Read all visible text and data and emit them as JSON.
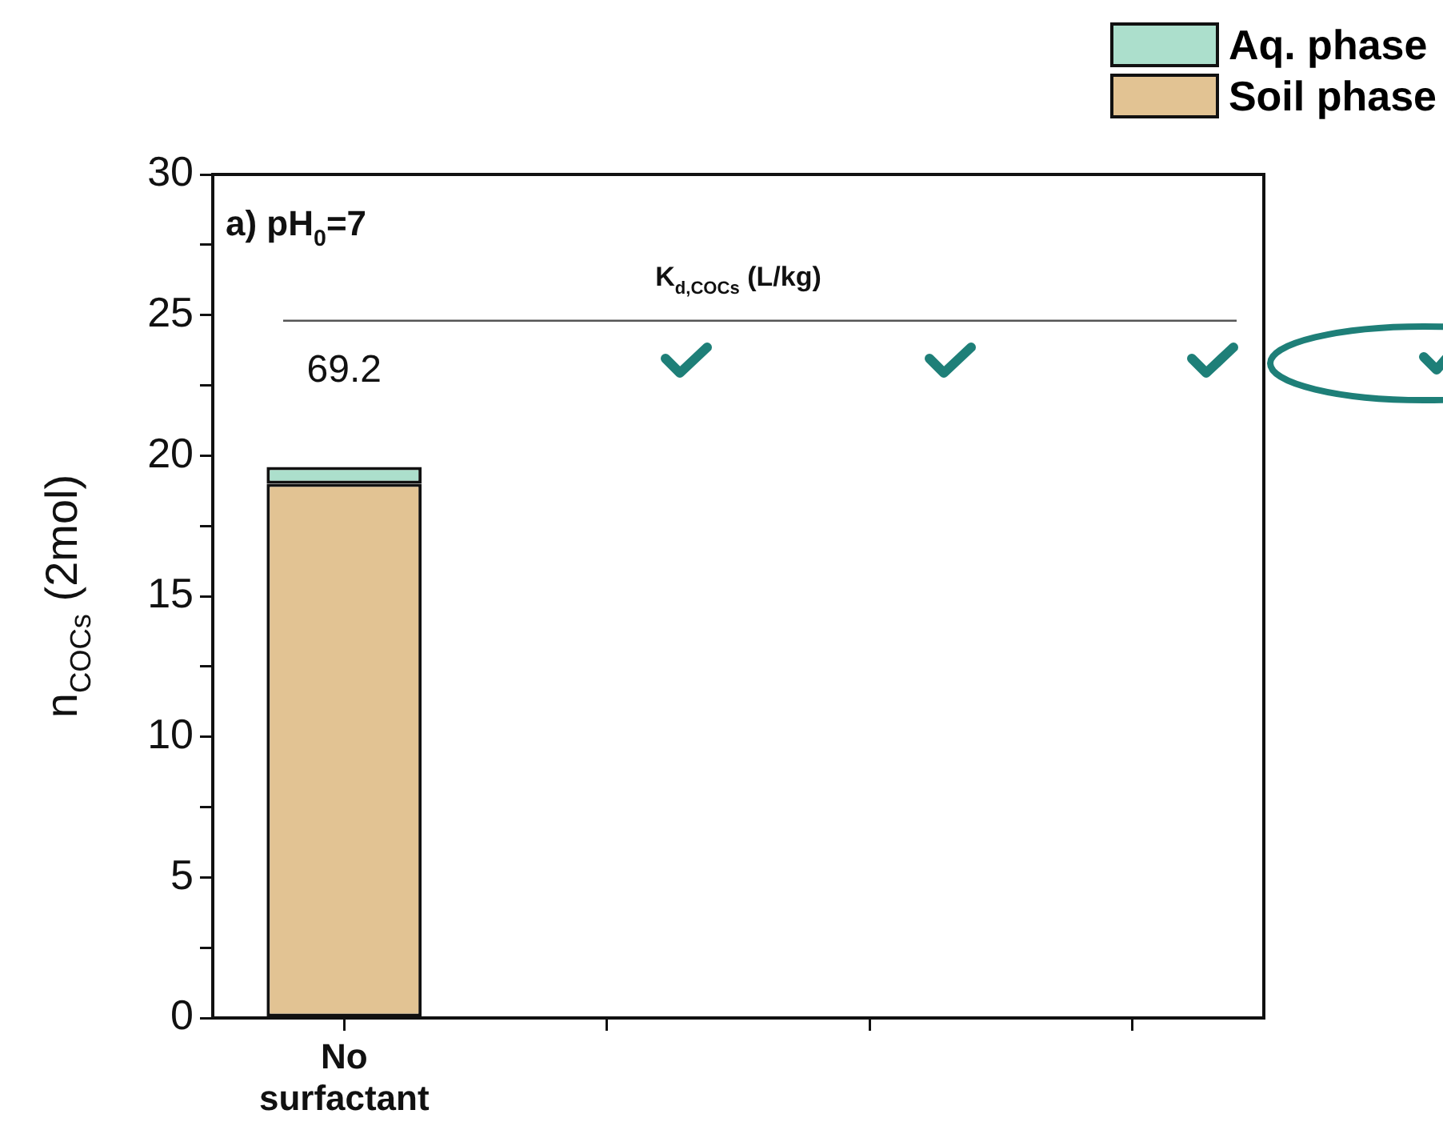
{
  "chart_data": {
    "type": "bar",
    "stacked": true,
    "categories": [
      "No surfactant",
      null,
      null,
      null
    ],
    "series": [
      {
        "name": "Soil phase",
        "color": "#e2c393",
        "values": [
          19.0,
          null,
          null,
          null
        ]
      },
      {
        "name": "Aq. phase",
        "color": "#acdfcc",
        "values": [
          0.6,
          null,
          null,
          null
        ]
      }
    ],
    "ylabel": "n$_{COCs}$ (2mol)",
    "ylim": [
      0,
      30
    ],
    "yticks": [
      0,
      {
        "value": 2.5,
        "label": null
      },
      5,
      {
        "value": 7.5,
        "label": null
      },
      10,
      {
        "value": 12.5,
        "label": null
      },
      15,
      {
        "value": 17.5,
        "label": null
      },
      20,
      {
        "value": 22.5,
        "label": null
      },
      25,
      {
        "value": 27.5,
        "label": null
      },
      30
    ],
    "ref_lines": [
      {
        "axis": "y",
        "value": 24.8,
        "color": "#555555"
      }
    ],
    "annotations": [
      "a) pH$_{0}$=7",
      "K$_{d,COCs}$ (L/kg)",
      "69.2"
    ],
    "legend": "top right",
    "grid": false
  }
}
